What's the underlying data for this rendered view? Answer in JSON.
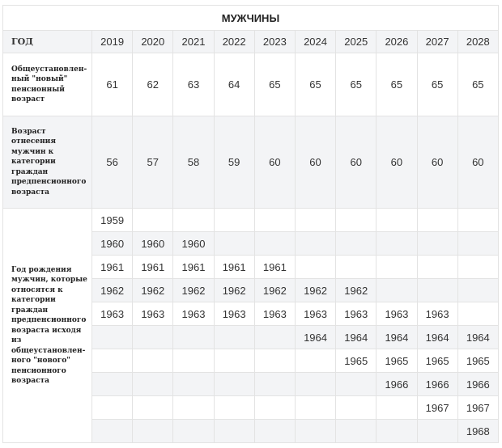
{
  "title": "МУЖЧИНЫ",
  "year_header": "ГОД",
  "years": [
    "2019",
    "2020",
    "2021",
    "2022",
    "2023",
    "2024",
    "2025",
    "2026",
    "2027",
    "2028"
  ],
  "row_retirement_age": {
    "label": "Общеустановлен-ный \"новый\" пенсионный возраст",
    "values": [
      "61",
      "62",
      "63",
      "64",
      "65",
      "65",
      "65",
      "65",
      "65",
      "65"
    ]
  },
  "row_prepension_age": {
    "label": "Возраст отнесения мужчин к категории граждан предпенсионного возраста",
    "values": [
      "56",
      "57",
      "58",
      "59",
      "60",
      "60",
      "60",
      "60",
      "60",
      "60"
    ]
  },
  "row_birth_years": {
    "label": "Год рождения мужчин, которые относятся к категории граждан предпенсионного возраста исходя из общеустановлен-ного \"нового\" пенсионного возраста",
    "rows": [
      [
        "1959",
        "",
        "",
        "",
        "",
        "",
        "",
        "",
        "",
        ""
      ],
      [
        "1960",
        "1960",
        "1960",
        "",
        "",
        "",
        "",
        "",
        "",
        ""
      ],
      [
        "1961",
        "1961",
        "1961",
        "1961",
        "1961",
        "",
        "",
        "",
        "",
        ""
      ],
      [
        "1962",
        "1962",
        "1962",
        "1962",
        "1962",
        "1962",
        "1962",
        "",
        "",
        ""
      ],
      [
        "1963",
        "1963",
        "1963",
        "1963",
        "1963",
        "1963",
        "1963",
        "1963",
        "1963",
        ""
      ],
      [
        "",
        "",
        "",
        "",
        "",
        "1964",
        "1964",
        "1964",
        "1964",
        "1964"
      ],
      [
        "",
        "",
        "",
        "",
        "",
        "",
        "1965",
        "1965",
        "1965",
        "1965"
      ],
      [
        "",
        "",
        "",
        "",
        "",
        "",
        "",
        "1966",
        "1966",
        "1966"
      ],
      [
        "",
        "",
        "",
        "",
        "",
        "",
        "",
        "",
        "1967",
        "1967"
      ],
      [
        "",
        "",
        "",
        "",
        "",
        "",
        "",
        "",
        "",
        "1968"
      ]
    ]
  }
}
